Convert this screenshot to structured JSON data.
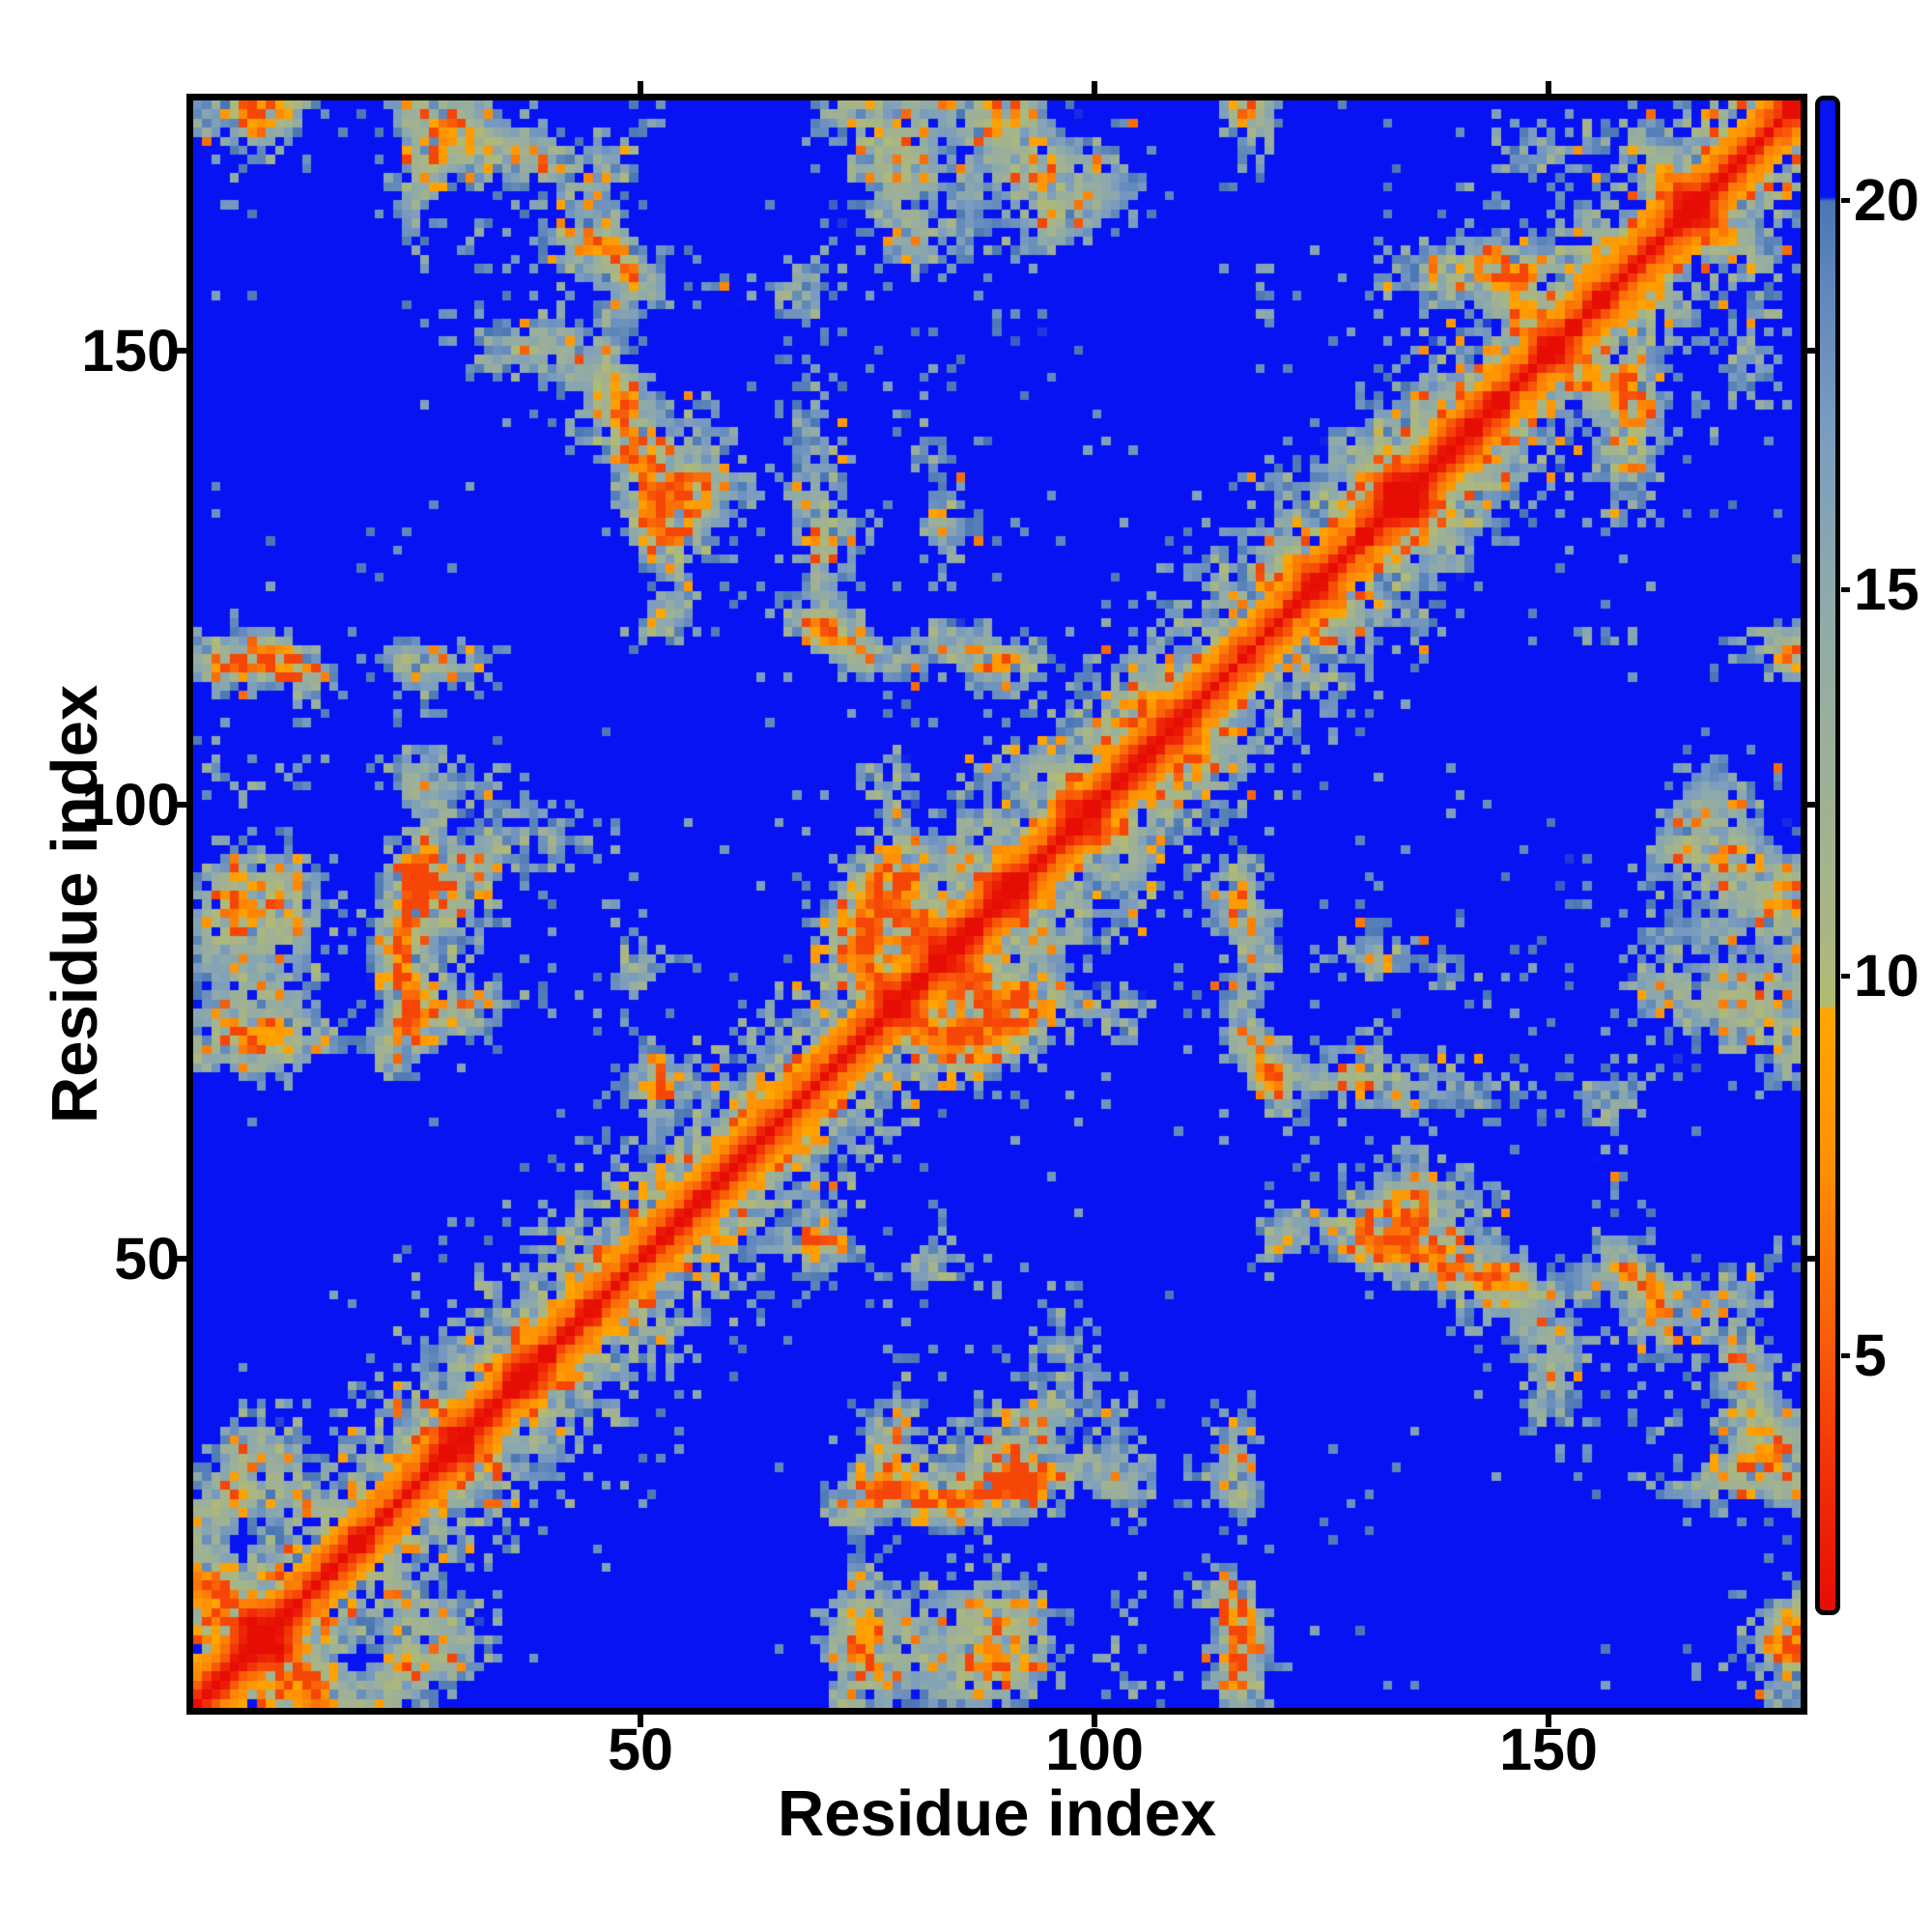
{
  "figure": {
    "background_color": "#ffffff",
    "frame_color": "#000000"
  },
  "chart_data": {
    "type": "heatmap",
    "title": "",
    "xlabel": "Residue index",
    "ylabel": "Residue index",
    "x_range": [
      1,
      177
    ],
    "y_range": [
      1,
      177
    ],
    "x_ticks": [
      50,
      100,
      150
    ],
    "y_ticks": [
      50,
      100,
      150
    ],
    "x_tick_labels": [
      "50",
      "100",
      "150"
    ],
    "y_tick_labels": [
      "50",
      "100",
      "150"
    ],
    "grid": false,
    "matrix": "symmetric residue-residue distance matrix, 177x177; red zero-distance diagonal, orange near-diagonal band, sage contact blobs, deep blue for distances beyond colormap maximum",
    "colorbar": {
      "orientation": "vertical",
      "position": "right",
      "value_range_top": 21.3,
      "value_range_bottom": 1.7,
      "ticks": [
        20,
        15,
        10,
        5
      ],
      "tick_labels": [
        "20",
        "15",
        "10",
        "5"
      ]
    },
    "colors": {
      "far_blue": "#0713f3",
      "slate_blue": "#4a76b4",
      "sage_green": "#9eb097",
      "orange": "#ffa600",
      "red": "#e60d05"
    },
    "colormap_stops": [
      [
        1.7,
        "#e60d05"
      ],
      [
        3.0,
        "#ee2606"
      ],
      [
        4.2,
        "#f54207"
      ],
      [
        5.2,
        "#f85c08"
      ],
      [
        6.2,
        "#fb7306"
      ],
      [
        7.5,
        "#fe8f04"
      ],
      [
        9.5,
        "#ffa600"
      ],
      [
        9.55,
        "#b2ba72"
      ],
      [
        10.5,
        "#a9b683"
      ],
      [
        12.5,
        "#9eb097"
      ],
      [
        15.0,
        "#8ca9ab"
      ],
      [
        17.0,
        "#7b9cc0"
      ],
      [
        19.0,
        "#5e86bb"
      ],
      [
        20.0,
        "#4a76b4"
      ],
      [
        20.05,
        "#0713f3"
      ],
      [
        21.3,
        "#0713f3"
      ]
    ],
    "matrix_generator": {
      "n": 177,
      "terms": {
        "x": [
          [
            2.1,
            15.2,
            0.4
          ],
          [
            4.7,
            7.6,
            1.9
          ],
          [
            8.9,
            3.9,
            4.4
          ],
          [
            14.3,
            2.1,
            0.8
          ]
        ],
        "y": [
          [
            2.9,
            15.2,
            1.1
          ],
          [
            5.3,
            7.6,
            3.7
          ],
          [
            10.1,
            3.9,
            2.1
          ],
          [
            16.9,
            2.1,
            2.9
          ]
        ],
        "z": [
          [
            1.9,
            13.4,
            4.2
          ],
          [
            6.1,
            7.6,
            0.6
          ],
          [
            9.7,
            3.9,
            5.0
          ],
          [
            13.1,
            2.1,
            3.6
          ]
        ]
      },
      "jitter": 0.9,
      "backbone": [
        0,
        3.8,
        5.9,
        7.2,
        8.6
      ],
      "backbone_noise": 1.0,
      "local_cap_a": 4.4,
      "local_cap_p": 0.6,
      "local_cap_noise": 5.0,
      "noise_amp": 10.0,
      "min_offdiag": 4.3,
      "slate_speckle_p": 0.008,
      "orange_speckle_p": 0.006,
      "clip_max": 21.4
    }
  }
}
